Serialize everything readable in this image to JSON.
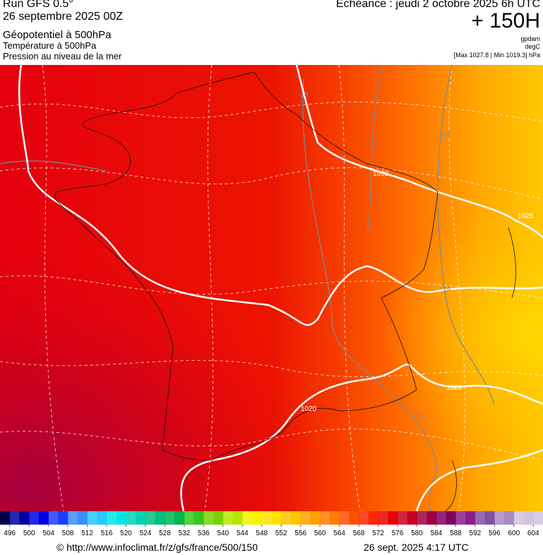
{
  "header": {
    "run": "Run GFS 0.5°",
    "run_date": "26 septembre 2025 00Z",
    "field1": "Géopotentiel à 500hPa",
    "field2": "Température à 500hPa",
    "field3": "Pression au niveau de la mer",
    "valid": "Echéance : jeudi 2 octobre 2025 6h UTC",
    "lead": "+ 150H",
    "unit1": "gpdam",
    "unit2": "degC",
    "range": "[Max 1027.8 | Min 1019.3] hPa"
  },
  "map": {
    "contour_labels": [
      "1030",
      "1025",
      "1020",
      "1020",
      "-16",
      "-14",
      "-14",
      "-16"
    ]
  },
  "colorbar": {
    "labels": [
      496,
      500,
      504,
      508,
      512,
      516,
      520,
      524,
      528,
      532,
      536,
      540,
      544,
      548,
      552,
      556,
      560,
      564,
      568,
      572,
      576,
      580,
      584,
      588,
      592,
      596,
      600,
      604
    ],
    "colors": [
      "#00004b",
      "#0000a0",
      "#0000e6",
      "#1e3cff",
      "#3c8cff",
      "#28c8ff",
      "#00e6e6",
      "#00d2b4",
      "#00be82",
      "#00b450",
      "#32c81e",
      "#78d200",
      "#b4e600",
      "#f0f500",
      "#ffe100",
      "#ffc300",
      "#ffa000",
      "#ff7d00",
      "#ff5000",
      "#ff2800",
      "#eb0000",
      "#c8001e",
      "#a00041",
      "#82005f",
      "#8c1e8c",
      "#8250a0",
      "#a887c3",
      "#d2c3e1"
    ]
  },
  "footer": {
    "source": "© http://www.infoclimat.fr/z/gfs/france/500/150",
    "date": "26 sept. 2025  4:17 UTC"
  }
}
